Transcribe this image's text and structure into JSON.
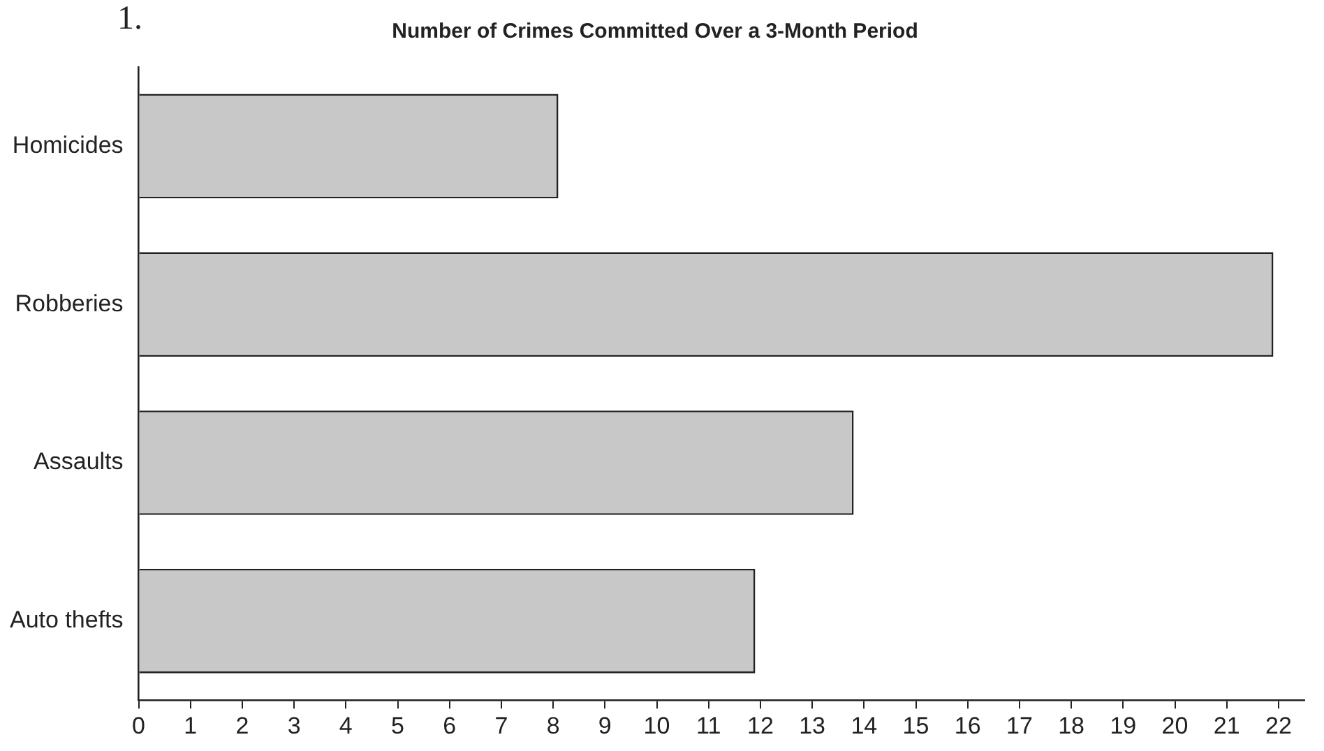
{
  "chart_data": {
    "type": "bar",
    "orientation": "horizontal",
    "title": "Number of Crimes Committed Over a 3-Month Period",
    "annotations": [
      "1."
    ],
    "categories": [
      "Homicides",
      "Robberies",
      "Assaults",
      "Auto thefts"
    ],
    "values": [
      8.1,
      21.9,
      13.8,
      11.9
    ],
    "color": "#c8c8c8",
    "xlim": [
      0,
      22.5
    ],
    "xticks": [
      0,
      1,
      2,
      3,
      4,
      5,
      6,
      7,
      8,
      9,
      10,
      11,
      12,
      13,
      14,
      15,
      16,
      17,
      18,
      19,
      20,
      21,
      22
    ],
    "grid": false,
    "legend": false
  }
}
